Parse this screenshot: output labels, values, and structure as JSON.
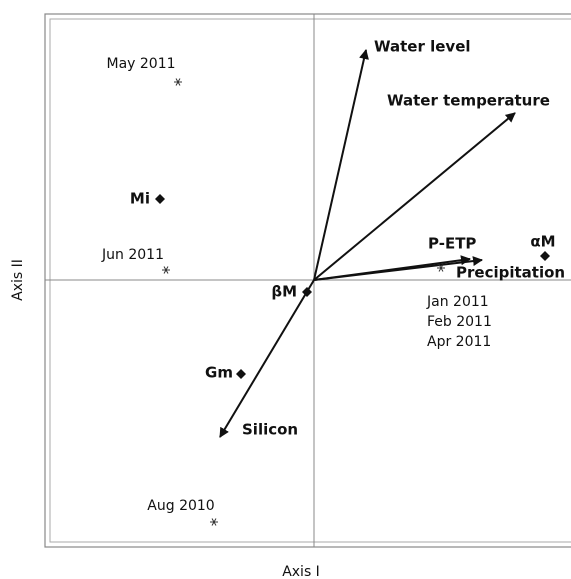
{
  "chart_data": {
    "type": "biplot",
    "x_label": "Axis I",
    "y_label": "Axis II",
    "xlim": [
      -2.69,
      2.57
    ],
    "ylim": [
      -2.67,
      2.66
    ],
    "color": "#111111",
    "points": [
      {
        "labels": [
          "May 2011"
        ],
        "x": -1.36,
        "y": 1.98,
        "marker": "star"
      },
      {
        "labels": [
          "Mi"
        ],
        "x": -1.54,
        "y": 0.81,
        "marker": "diamond"
      },
      {
        "labels": [
          "Jun 2011"
        ],
        "x": -1.48,
        "y": 0.1,
        "marker": "star"
      },
      {
        "labels": [
          "βM"
        ],
        "x": -0.07,
        "y": -0.12,
        "marker": "diamond"
      },
      {
        "labels": [
          "Gm"
        ],
        "x": -0.73,
        "y": -0.94,
        "marker": "diamond"
      },
      {
        "labels": [
          "Aug 2010"
        ],
        "x": -1.0,
        "y": -2.42,
        "marker": "star"
      },
      {
        "labels": [
          "αM"
        ],
        "x": 2.31,
        "y": 0.24,
        "marker": "diamond"
      },
      {
        "labels": [
          "Jan 2011",
          "Feb 2011",
          "Apr 2011"
        ],
        "x": 1.27,
        "y": 0.12,
        "marker": "star"
      }
    ],
    "vectors": [
      {
        "name": "Water level",
        "x": 0.52,
        "y": 2.3
      },
      {
        "name": "Water temperature",
        "x": 2.01,
        "y": 1.67
      },
      {
        "name": "P-ETP",
        "x": 1.56,
        "y": 0.21
      },
      {
        "name": "Precipitation",
        "x": 1.68,
        "y": 0.2
      },
      {
        "name": "Silicon",
        "x": -0.94,
        "y": -1.57
      }
    ]
  }
}
